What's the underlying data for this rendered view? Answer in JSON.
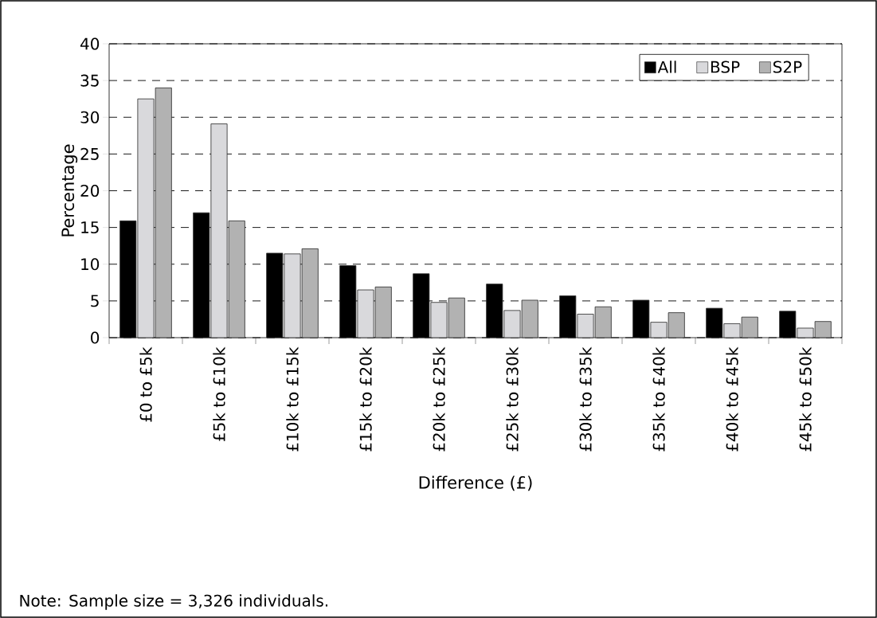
{
  "chart_data": {
    "type": "bar",
    "xlabel": "Difference (£)",
    "ylabel": "Percentage",
    "categories": [
      "£0 to £5k",
      "£5k to £10k",
      "£10k to £15k",
      "£15k to £20k",
      "£20k to £25k",
      "£25k to £30k",
      "£30k to £35k",
      "£35k to £40k",
      "£40k to £45k",
      "£45k to £50k"
    ],
    "series": [
      {
        "name": "All",
        "color": "#000000",
        "values": [
          15.9,
          17.0,
          11.5,
          9.8,
          8.7,
          7.3,
          5.7,
          5.1,
          4.0,
          3.6
        ]
      },
      {
        "name": "BSP",
        "color": "#d9d9dc",
        "values": [
          32.5,
          29.1,
          11.4,
          6.5,
          4.8,
          3.7,
          3.2,
          2.1,
          1.9,
          1.3
        ]
      },
      {
        "name": "S2P",
        "color": "#b2b2b2",
        "values": [
          34.0,
          15.9,
          12.1,
          6.9,
          5.4,
          5.1,
          4.2,
          3.4,
          2.8,
          2.2
        ]
      }
    ],
    "ylim": [
      0,
      40
    ],
    "yticks": [
      0,
      5,
      10,
      15,
      20,
      25,
      30,
      35,
      40
    ],
    "grid": "y",
    "legend": "top right",
    "annotations": [
      "Note: Sample size = 3,326 individuals."
    ]
  }
}
